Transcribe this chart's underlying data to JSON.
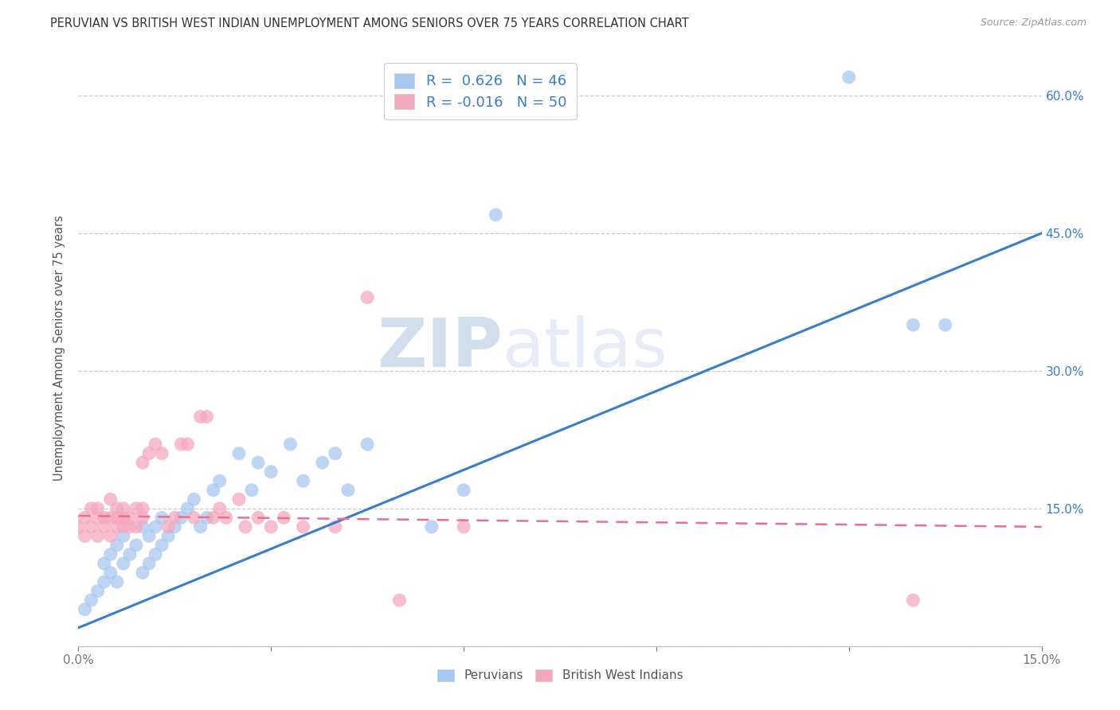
{
  "title": "PERUVIAN VS BRITISH WEST INDIAN UNEMPLOYMENT AMONG SENIORS OVER 75 YEARS CORRELATION CHART",
  "source": "Source: ZipAtlas.com",
  "ylabel": "Unemployment Among Seniors over 75 years",
  "xlim": [
    0.0,
    0.15
  ],
  "ylim": [
    0.0,
    0.65
  ],
  "xticks": [
    0.0,
    0.03,
    0.06,
    0.09,
    0.12,
    0.15
  ],
  "yticks": [
    0.0,
    0.15,
    0.3,
    0.45,
    0.6
  ],
  "xticklabels": [
    "0.0%",
    "",
    "",
    "",
    "",
    "15.0%"
  ],
  "yticklabels_right": [
    "",
    "15.0%",
    "30.0%",
    "45.0%",
    "60.0%"
  ],
  "peruvian_color": "#A8C8F0",
  "bwi_color": "#F4A8BE",
  "peruvian_line_color": "#3A7DC9",
  "bwi_line_color": "#E87090",
  "peruvian_R": 0.626,
  "peruvian_N": 46,
  "bwi_R": -0.016,
  "bwi_N": 50,
  "legend_label_peru": "Peruvians",
  "legend_label_bwi": "British West Indians",
  "watermark_zip": "ZIP",
  "watermark_atlas": "atlas",
  "peru_line_x0": 0.0,
  "peru_line_y0": 0.02,
  "peru_line_x1": 0.15,
  "peru_line_y1": 0.45,
  "bwi_line_x0": 0.0,
  "bwi_line_y0": 0.142,
  "bwi_line_x1": 0.15,
  "bwi_line_y1": 0.13,
  "peruvian_x": [
    0.001,
    0.002,
    0.003,
    0.004,
    0.004,
    0.005,
    0.005,
    0.006,
    0.006,
    0.007,
    0.007,
    0.008,
    0.009,
    0.01,
    0.01,
    0.011,
    0.011,
    0.012,
    0.012,
    0.013,
    0.013,
    0.014,
    0.015,
    0.016,
    0.017,
    0.018,
    0.019,
    0.02,
    0.021,
    0.022,
    0.025,
    0.027,
    0.028,
    0.03,
    0.033,
    0.035,
    0.038,
    0.04,
    0.042,
    0.045,
    0.055,
    0.06,
    0.065,
    0.12,
    0.13,
    0.135
  ],
  "peruvian_y": [
    0.04,
    0.05,
    0.06,
    0.07,
    0.09,
    0.08,
    0.1,
    0.07,
    0.11,
    0.09,
    0.12,
    0.1,
    0.11,
    0.08,
    0.13,
    0.09,
    0.12,
    0.1,
    0.13,
    0.11,
    0.14,
    0.12,
    0.13,
    0.14,
    0.15,
    0.16,
    0.13,
    0.14,
    0.17,
    0.18,
    0.21,
    0.17,
    0.2,
    0.19,
    0.22,
    0.18,
    0.2,
    0.21,
    0.17,
    0.22,
    0.13,
    0.17,
    0.47,
    0.62,
    0.35,
    0.35
  ],
  "bwi_x": [
    0.0,
    0.001,
    0.001,
    0.002,
    0.002,
    0.003,
    0.003,
    0.003,
    0.004,
    0.004,
    0.005,
    0.005,
    0.005,
    0.006,
    0.006,
    0.006,
    0.007,
    0.007,
    0.007,
    0.008,
    0.008,
    0.009,
    0.009,
    0.01,
    0.01,
    0.01,
    0.011,
    0.012,
    0.013,
    0.014,
    0.015,
    0.016,
    0.017,
    0.018,
    0.019,
    0.02,
    0.021,
    0.022,
    0.023,
    0.025,
    0.026,
    0.028,
    0.03,
    0.032,
    0.035,
    0.04,
    0.045,
    0.05,
    0.06,
    0.13
  ],
  "bwi_y": [
    0.13,
    0.14,
    0.12,
    0.15,
    0.13,
    0.14,
    0.12,
    0.15,
    0.13,
    0.14,
    0.12,
    0.14,
    0.16,
    0.13,
    0.14,
    0.15,
    0.13,
    0.14,
    0.15,
    0.13,
    0.14,
    0.15,
    0.13,
    0.14,
    0.15,
    0.2,
    0.21,
    0.22,
    0.21,
    0.13,
    0.14,
    0.22,
    0.22,
    0.14,
    0.25,
    0.25,
    0.14,
    0.15,
    0.14,
    0.16,
    0.13,
    0.14,
    0.13,
    0.14,
    0.13,
    0.13,
    0.38,
    0.05,
    0.13,
    0.05
  ]
}
